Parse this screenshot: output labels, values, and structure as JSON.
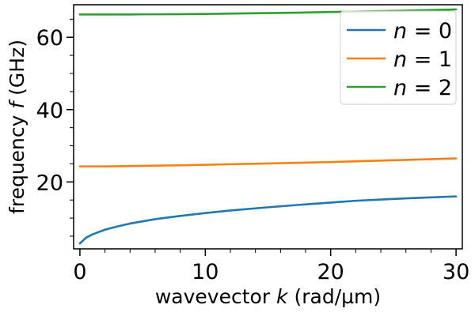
{
  "chart_data": {
    "type": "line",
    "xlabel": {
      "pre": "wavevector ",
      "var": "k",
      "post": " (rad/µm)"
    },
    "ylabel": {
      "pre": "frequency ",
      "var": "f",
      "post": " (GHz)"
    },
    "xlim": [
      -0.5,
      30.5
    ],
    "ylim": [
      1.5,
      69
    ],
    "xticks": [
      0,
      10,
      20,
      30
    ],
    "yticks": [
      20,
      40,
      60
    ],
    "x_minor_step": 2,
    "y_minor_step": 5,
    "grid": false,
    "legend_position": "top-right",
    "x": [
      0,
      0.5,
      1,
      2,
      3,
      4,
      5,
      6,
      8,
      10,
      12,
      15,
      18,
      20,
      22,
      25,
      27,
      30
    ],
    "series": [
      {
        "name": {
          "var": "n",
          "op": " = ",
          "val": "0"
        },
        "color": "#1f77b4",
        "values": [
          3.0,
          4.6,
          5.5,
          6.8,
          7.7,
          8.5,
          9.1,
          9.7,
          10.6,
          11.4,
          12.1,
          13.0,
          13.8,
          14.3,
          14.8,
          15.3,
          15.6,
          16.0
        ]
      },
      {
        "name": {
          "var": "n",
          "op": " = ",
          "val": "1"
        },
        "color": "#ff7f0e",
        "values": [
          24.3,
          24.3,
          24.3,
          24.3,
          24.35,
          24.4,
          24.45,
          24.5,
          24.6,
          24.75,
          24.9,
          25.1,
          25.35,
          25.5,
          25.7,
          26.0,
          26.2,
          26.5
        ]
      },
      {
        "name": {
          "var": "n",
          "op": " = ",
          "val": "2"
        },
        "color": "#2ca02c",
        "values": [
          66.3,
          66.3,
          66.3,
          66.3,
          66.3,
          66.3,
          66.35,
          66.35,
          66.4,
          66.45,
          66.55,
          66.7,
          66.85,
          67.0,
          67.1,
          67.3,
          67.45,
          67.7
        ]
      }
    ]
  }
}
